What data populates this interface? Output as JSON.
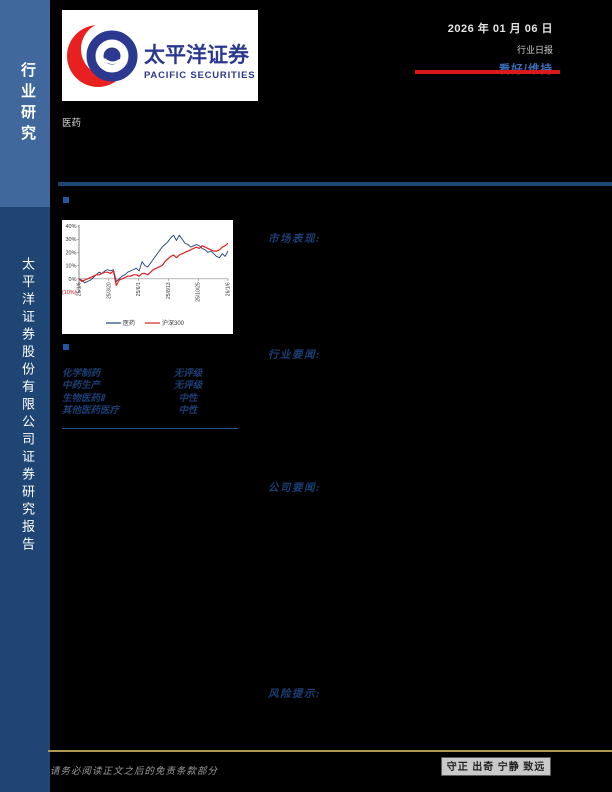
{
  "colors": {
    "accent_red": "#d9191c",
    "rating_blue": "#3a6db8",
    "gold": "#ae9a55",
    "dark_navy_text": "#1b3e74"
  },
  "sidebar": {
    "top_label": "行业研究",
    "bottom_label": "太平洋证券股份有限公司证券研究报告"
  },
  "header": {
    "logo_cn": "太平洋证券",
    "logo_en": "PACIFIC SECURITIES",
    "date": "2026 年 01 月 06 日",
    "report_type": "行业日报",
    "rating": "看好/维持"
  },
  "industry_label": "医药",
  "sections": {
    "market": "市场表现:",
    "industry_news": "行业要闻:",
    "company_news": "公司要闻:",
    "risk": "风险提示:"
  },
  "sub_rating_table": {
    "rows": [
      {
        "name": "化学制药",
        "rating": "无评级"
      },
      {
        "name": "中药生产",
        "rating": "无评级"
      },
      {
        "name": "生物医药Ⅱ",
        "rating": "中性"
      },
      {
        "name": "其他医药医疗",
        "rating": "中性"
      }
    ]
  },
  "chart_data": {
    "type": "line",
    "title": "",
    "xlabel": "",
    "ylabel": "",
    "ylim": [
      -10,
      40
    ],
    "grid": false,
    "legend_position": "bottom",
    "x_tick_labels": [
      "25/1/6",
      "25/3/20",
      "25/6/1",
      "25/8/13",
      "25/10/25",
      "26/1/6"
    ],
    "y_ticks": [
      {
        "label": "40%",
        "value": 40,
        "color": "#333333"
      },
      {
        "label": "30%",
        "value": 30,
        "color": "#333333"
      },
      {
        "label": "20%",
        "value": 20,
        "color": "#333333"
      },
      {
        "label": "10%",
        "value": 10,
        "color": "#333333"
      },
      {
        "label": "0%",
        "value": 0,
        "color": "#333333"
      },
      {
        "label": "(10%)",
        "value": -10,
        "color": "#cc1719"
      }
    ],
    "series": [
      {
        "name": "医药",
        "color": "#1e4179",
        "values": [
          0,
          -1,
          -3,
          -2,
          -1,
          1,
          3,
          5,
          4,
          6,
          7,
          6,
          7,
          -2,
          0,
          2,
          3,
          5,
          6,
          7,
          8,
          6,
          13,
          10,
          9,
          12,
          15,
          18,
          21,
          24,
          26,
          28,
          31,
          33,
          29,
          33,
          30,
          27,
          26,
          24,
          25,
          26,
          25,
          23,
          22,
          20,
          21,
          19,
          17,
          16,
          19,
          17,
          21
        ]
      },
      {
        "name": "沪深300",
        "color": "#e01f22",
        "values": [
          0,
          -2,
          -1,
          0,
          1,
          2,
          3,
          3,
          4,
          5,
          5,
          4,
          6,
          -5,
          -1,
          0,
          1,
          2,
          2,
          3,
          3,
          2,
          4,
          4,
          3,
          5,
          7,
          8,
          9,
          10,
          13,
          15,
          17,
          18,
          16,
          18,
          19,
          20,
          21,
          22,
          23,
          24,
          23,
          25,
          24,
          23,
          22,
          21,
          21,
          22,
          24,
          25,
          27
        ]
      }
    ]
  },
  "footer": {
    "disclaimer": "请务必阅读正文之后的免责条款部分",
    "motto": "守正 出奇 宁静 致远"
  }
}
